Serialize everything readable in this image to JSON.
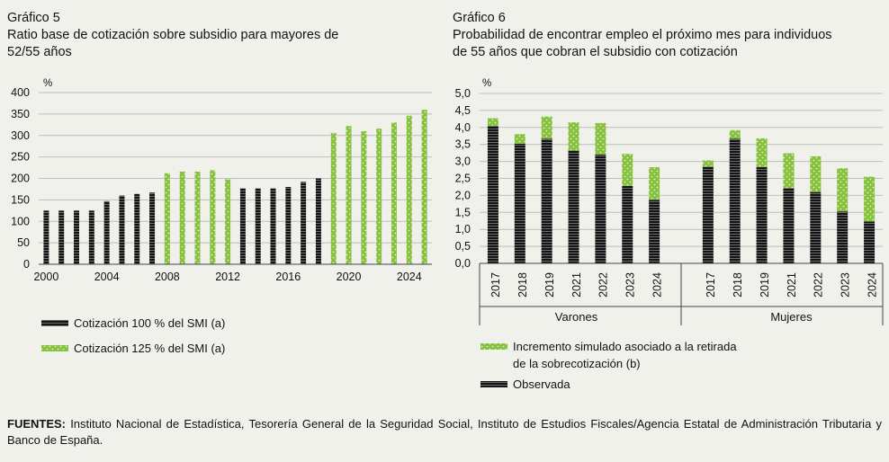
{
  "chart_data": [
    {
      "type": "bar",
      "number": "Gráfico 5",
      "title": "Ratio base de cotización sobre subsidio para mayores de 52/55 años",
      "title_lines": [
        "Ratio base de cotización sobre subsidio para mayores de",
        "52/55 años"
      ],
      "ylabel": "%",
      "ylim": [
        0,
        400
      ],
      "yticks": [
        "0",
        "50",
        "100",
        "150",
        "200",
        "250",
        "300",
        "350",
        "400"
      ],
      "x_tick_labels": [
        "2000",
        "2004",
        "2008",
        "2012",
        "2016",
        "2020",
        "2024"
      ],
      "grid": true,
      "legend_position": "bottom",
      "series": [
        {
          "name": "Cotización 100 % del SMI (a)",
          "color": "#1a1a1a",
          "pattern": "striped"
        },
        {
          "name": "Cotización 125 % del SMI (a)",
          "color": "#8dc63f",
          "pattern": "dotted"
        }
      ],
      "data": [
        {
          "year": 2000,
          "value": 125,
          "series": 0
        },
        {
          "year": 2001,
          "value": 125,
          "series": 0
        },
        {
          "year": 2002,
          "value": 125,
          "series": 0
        },
        {
          "year": 2003,
          "value": 125,
          "series": 0
        },
        {
          "year": 2004,
          "value": 147,
          "series": 0
        },
        {
          "year": 2005,
          "value": 160,
          "series": 0
        },
        {
          "year": 2006,
          "value": 164,
          "series": 0
        },
        {
          "year": 2007,
          "value": 167,
          "series": 0
        },
        {
          "year": 2008,
          "value": 212,
          "series": 1
        },
        {
          "year": 2009,
          "value": 216,
          "series": 1
        },
        {
          "year": 2010,
          "value": 216,
          "series": 1
        },
        {
          "year": 2011,
          "value": 219,
          "series": 1
        },
        {
          "year": 2012,
          "value": 198,
          "series": 1
        },
        {
          "year": 2013,
          "value": 177,
          "series": 0
        },
        {
          "year": 2014,
          "value": 177,
          "series": 0
        },
        {
          "year": 2015,
          "value": 177,
          "series": 0
        },
        {
          "year": 2016,
          "value": 180,
          "series": 0
        },
        {
          "year": 2017,
          "value": 192,
          "series": 0
        },
        {
          "year": 2018,
          "value": 200,
          "series": 0
        },
        {
          "year": 2019,
          "value": 306,
          "series": 1
        },
        {
          "year": 2020,
          "value": 322,
          "series": 1
        },
        {
          "year": 2021,
          "value": 310,
          "series": 1
        },
        {
          "year": 2022,
          "value": 316,
          "series": 1
        },
        {
          "year": 2023,
          "value": 330,
          "series": 1
        },
        {
          "year": 2024,
          "value": 346,
          "series": 1
        },
        {
          "year": 2025,
          "value": 360,
          "series": 1
        }
      ]
    },
    {
      "type": "bar",
      "stacked": true,
      "number": "Gráfico 6",
      "title": "Probabilidad de encontrar empleo el próximo mes para individuos de 55 años que cobran el subsidio con cotización",
      "title_lines": [
        "Probabilidad de encontrar empleo el próximo mes para individuos",
        "de 55 años que cobran el subsidio con cotización"
      ],
      "ylabel": "%",
      "ylim": [
        0,
        5
      ],
      "yticks": [
        "0,0",
        "0,5",
        "1,0",
        "1,5",
        "2,0",
        "2,5",
        "3,0",
        "3,5",
        "4,0",
        "4,5",
        "5,0"
      ],
      "grid": true,
      "legend_position": "bottom",
      "series": [
        {
          "name": "Incremento simulado asociado a la retirada de la sobrecotización (b)",
          "name_lines": [
            "Incremento simulado asociado a la retirada",
            "de la sobrecotización (b)"
          ],
          "color": "#8dc63f",
          "pattern": "dotted"
        },
        {
          "name": "Observada",
          "color": "#1a1a1a",
          "pattern": "striped"
        }
      ],
      "groups": [
        {
          "label": "Varones",
          "categories": [
            "2017",
            "2018",
            "2019",
            "2021",
            "2022",
            "2023",
            "2024"
          ],
          "observada": [
            4.05,
            3.52,
            3.67,
            3.32,
            3.2,
            2.28,
            1.87
          ],
          "incremento": [
            0.22,
            0.28,
            0.65,
            0.83,
            0.93,
            0.94,
            0.96
          ]
        },
        {
          "label": "Mujeres",
          "categories": [
            "2017",
            "2018",
            "2019",
            "2021",
            "2022",
            "2023",
            "2024"
          ],
          "observada": [
            2.85,
            3.67,
            2.83,
            2.22,
            2.1,
            1.53,
            1.23
          ],
          "incremento": [
            0.18,
            0.25,
            0.85,
            1.02,
            1.05,
            1.27,
            1.32
          ]
        }
      ]
    }
  ],
  "footer": {
    "label": "FUENTES:",
    "text": " Instituto Nacional de Estadística, Tesorería General de la Seguridad Social, Instituto de Estudios Fiscales/Agencia Estatal de Administración Tributaria y Banco de España."
  }
}
